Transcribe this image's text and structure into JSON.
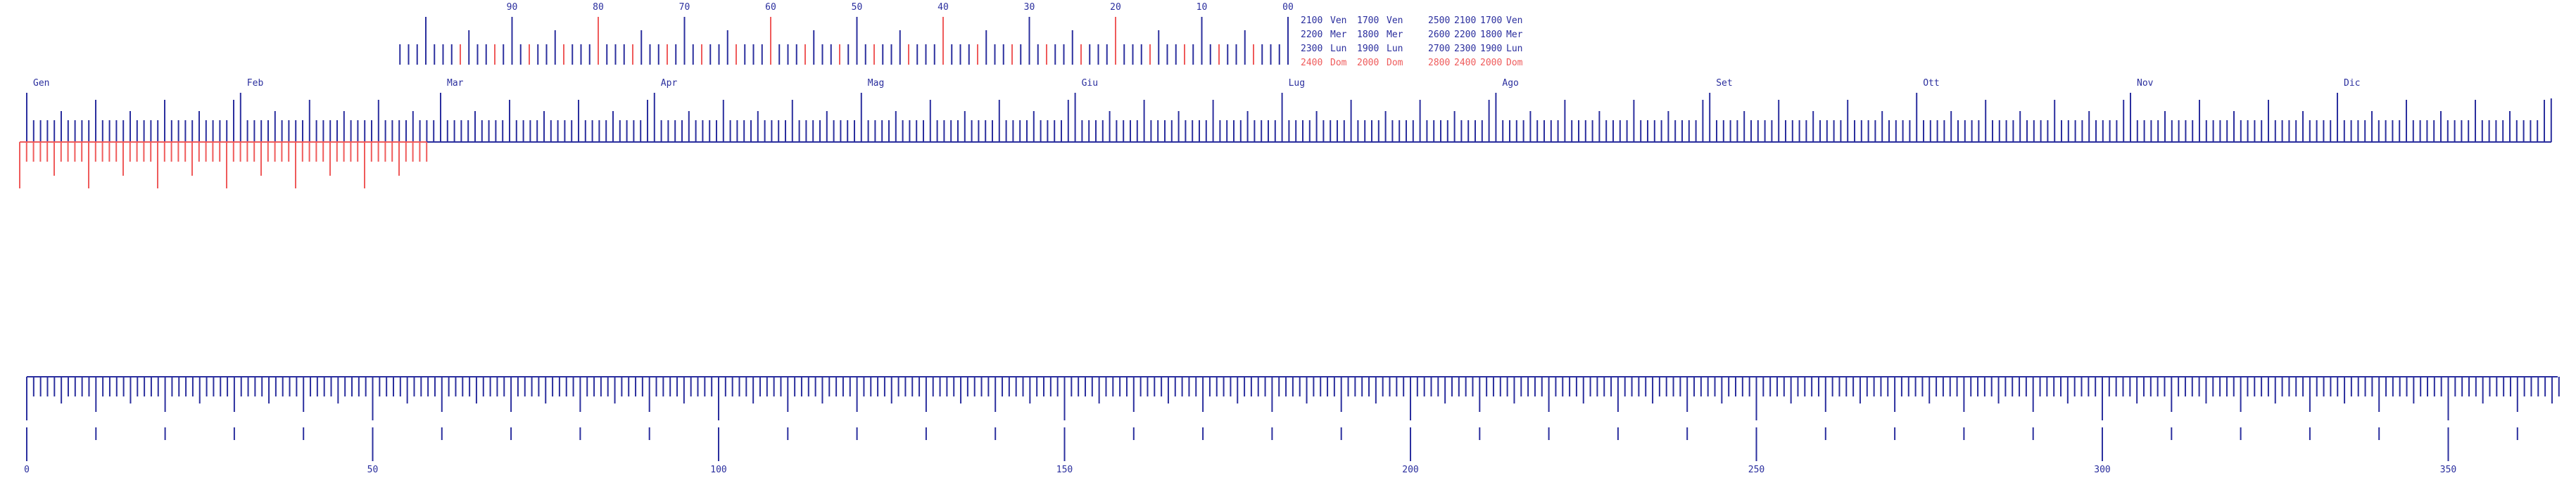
{
  "colors": {
    "ink": "#2b2f9e",
    "accent": "#ef5b5b",
    "background": "#ffffff"
  },
  "year_scale": {
    "labels": [
      "90",
      "80",
      "70",
      "60",
      "50",
      "40",
      "30",
      "20",
      "10",
      "00"
    ],
    "accent_labels": [
      "80",
      "60",
      "40",
      "20"
    ]
  },
  "table_left": {
    "rows": [
      [
        "2100",
        "Ven",
        "1700",
        "Ven"
      ],
      [
        "2200",
        "Mer",
        "1800",
        "Mer"
      ],
      [
        "2300",
        "Lun",
        "1900",
        "Lun"
      ],
      [
        "2400",
        "Dom",
        "2000",
        "Dom"
      ]
    ],
    "accent_row": 3
  },
  "table_right": {
    "rows": [
      [
        "2500",
        "2100",
        "1700",
        "Ven"
      ],
      [
        "2600",
        "2200",
        "1800",
        "Mer"
      ],
      [
        "2700",
        "2300",
        "1900",
        "Lun"
      ],
      [
        "2800",
        "2400",
        "2000",
        "Dom"
      ]
    ],
    "accent_row": 3
  },
  "month_scale": {
    "months": [
      "Gen",
      "Feb",
      "Mar",
      "Apr",
      "Mag",
      "Giu",
      "Lug",
      "Ago",
      "Set",
      "Ott",
      "Nov",
      "Dic"
    ],
    "days_per_month": [
      31,
      29,
      31,
      30,
      31,
      30,
      31,
      31,
      30,
      31,
      30,
      31
    ]
  },
  "day_scale": {
    "labels": [
      "0",
      "50",
      "100",
      "150",
      "200",
      "250",
      "300",
      "350"
    ],
    "max_day": 366
  }
}
